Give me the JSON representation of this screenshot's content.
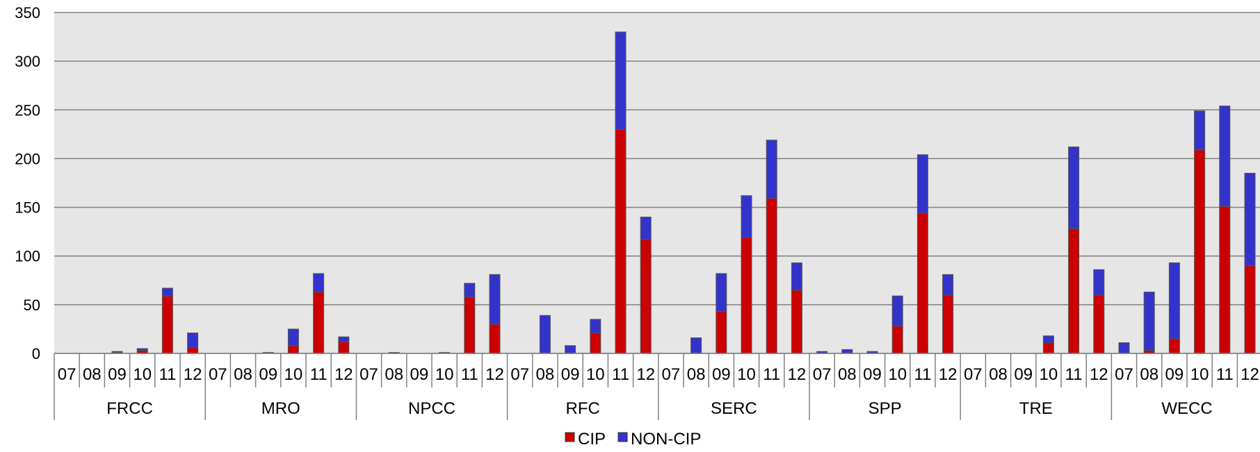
{
  "chart_data": {
    "type": "bar",
    "stacked": true,
    "title": "",
    "xlabel": "",
    "ylabel": "",
    "ylim": [
      0,
      350
    ],
    "yticks": [
      0,
      50,
      100,
      150,
      200,
      250,
      300,
      350
    ],
    "grid": true,
    "legend_position": "bottom",
    "groups": [
      "FRCC",
      "MRO",
      "NPCC",
      "RFC",
      "SERC",
      "SPP",
      "TRE",
      "WECC"
    ],
    "subcategories": [
      "07",
      "08",
      "09",
      "10",
      "11",
      "12"
    ],
    "series": [
      {
        "name": "CIP",
        "color": "#cc0000",
        "values": [
          0,
          0,
          1,
          3,
          59,
          6,
          0,
          0,
          0,
          8,
          63,
          12,
          0,
          0,
          0,
          0,
          58,
          30,
          0,
          0,
          0,
          21,
          230,
          117,
          0,
          0,
          43,
          119,
          159,
          65,
          0,
          0,
          0,
          28,
          144,
          60,
          0,
          0,
          0,
          11,
          128,
          60,
          0,
          3,
          15,
          209,
          151,
          90
        ]
      },
      {
        "name": "NON-CIP",
        "color": "#3333cc",
        "values": [
          0,
          0,
          1,
          2,
          8,
          15,
          0,
          0,
          1,
          17,
          19,
          5,
          0,
          1,
          0,
          1,
          14,
          51,
          0,
          39,
          8,
          14,
          100,
          23,
          0,
          16,
          39,
          43,
          60,
          28,
          2,
          4,
          2,
          31,
          60,
          21,
          0,
          0,
          0,
          7,
          84,
          26,
          11,
          60,
          78,
          40,
          103,
          95
        ]
      }
    ]
  }
}
